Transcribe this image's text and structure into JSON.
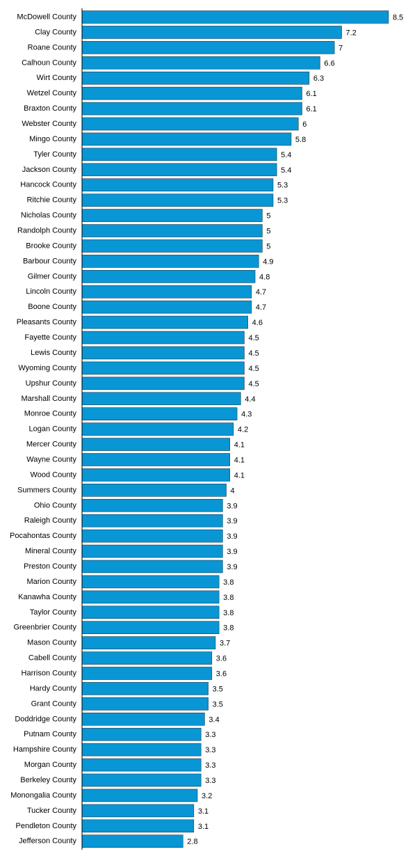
{
  "colors": {
    "bar": "#0996d5",
    "bar_stroke": "#1a3a4a",
    "axis": "#000000",
    "text": "#000000"
  },
  "chart_data": {
    "type": "bar",
    "orientation": "horizontal",
    "title": "",
    "xlabel": "",
    "ylabel": "",
    "grid": false,
    "legend": "none",
    "xlim": [
      0,
      8.5
    ],
    "categories": [
      "McDowell County",
      "Clay County",
      "Roane County",
      "Calhoun County",
      "Wirt County",
      "Wetzel County",
      "Braxton County",
      "Webster County",
      "Mingo County",
      "Tyler County",
      "Jackson County",
      "Hancock County",
      "Ritchie County",
      "Nicholas County",
      "Randolph County",
      "Brooke County",
      "Barbour County",
      "Gilmer County",
      "Lincoln County",
      "Boone County",
      "Pleasants County",
      "Fayette County",
      "Lewis County",
      "Wyoming County",
      "Upshur County",
      "Marshall County",
      "Monroe County",
      "Logan County",
      "Mercer County",
      "Wayne County",
      "Wood County",
      "Summers County",
      "Ohio County",
      "Raleigh County",
      "Pocahontas County",
      "Mineral County",
      "Preston County",
      "Marion County",
      "Kanawha County",
      "Taylor County",
      "Greenbrier County",
      "Mason County",
      "Cabell County",
      "Harrison County",
      "Hardy County",
      "Grant County",
      "Doddridge County",
      "Putnam County",
      "Hampshire County",
      "Morgan County",
      "Berkeley County",
      "Monongalia County",
      "Tucker County",
      "Pendleton County",
      "Jefferson County"
    ],
    "values": [
      8.5,
      7.2,
      7,
      6.6,
      6.3,
      6.1,
      6.1,
      6,
      5.8,
      5.4,
      5.4,
      5.3,
      5.3,
      5,
      5,
      5,
      4.9,
      4.8,
      4.7,
      4.7,
      4.6,
      4.5,
      4.5,
      4.5,
      4.5,
      4.4,
      4.3,
      4.2,
      4.1,
      4.1,
      4.1,
      4,
      3.9,
      3.9,
      3.9,
      3.9,
      3.9,
      3.8,
      3.8,
      3.8,
      3.8,
      3.7,
      3.6,
      3.6,
      3.5,
      3.5,
      3.4,
      3.3,
      3.3,
      3.3,
      3.3,
      3.2,
      3.1,
      3.1,
      2.8
    ],
    "value_labels": [
      "8.5",
      "7.2",
      "7",
      "6.6",
      "6.3",
      "6.1",
      "6.1",
      "6",
      "5.8",
      "5.4",
      "5.4",
      "5.3",
      "5.3",
      "5",
      "5",
      "5",
      "4.9",
      "4.8",
      "4.7",
      "4.7",
      "4.6",
      "4.5",
      "4.5",
      "4.5",
      "4.5",
      "4.4",
      "4.3",
      "4.2",
      "4.1",
      "4.1",
      "4.1",
      "4",
      "3.9",
      "3.9",
      "3.9",
      "3.9",
      "3.9",
      "3.8",
      "3.8",
      "3.8",
      "3.8",
      "3.7",
      "3.6",
      "3.6",
      "3.5",
      "3.5",
      "3.4",
      "3.3",
      "3.3",
      "3.3",
      "3.3",
      "3.2",
      "3.1",
      "3.1",
      "2.8"
    ]
  }
}
